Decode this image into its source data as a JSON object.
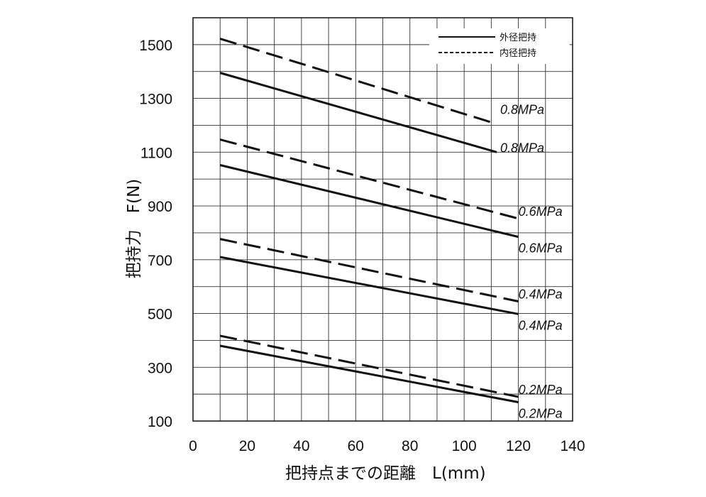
{
  "chart_data": {
    "type": "line",
    "xlabel": "把持点までの距離　L(mm)",
    "ylabel": "把持力　F(N)",
    "xlim": [
      0,
      140
    ],
    "ylim": [
      100,
      1600
    ],
    "x_ticks": [
      "0",
      "20",
      "40",
      "60",
      "80",
      "100",
      "120",
      "140"
    ],
    "y_ticks": [
      "100",
      "300",
      "500",
      "700",
      "900",
      "1100",
      "1300",
      "1500"
    ],
    "grid": true,
    "legend_position": "top-right",
    "legend": [
      {
        "label": "外径把持",
        "style": "solid"
      },
      {
        "label": "内径把持",
        "style": "dashed"
      }
    ],
    "series": [
      {
        "group": "外径把持",
        "style": "solid",
        "pressure_label": "0.8MPa",
        "x": [
          10,
          112
        ],
        "values": [
          1395,
          1100
        ]
      },
      {
        "group": "内径把持",
        "style": "dashed",
        "pressure_label": "0.8MPa",
        "x": [
          10,
          112
        ],
        "values": [
          1522,
          1205
        ]
      },
      {
        "group": "外径把持",
        "style": "solid",
        "pressure_label": "0.6MPa",
        "x": [
          10,
          120
        ],
        "values": [
          1052,
          785
        ]
      },
      {
        "group": "内径把持",
        "style": "dashed",
        "pressure_label": "0.6MPa",
        "x": [
          10,
          120
        ],
        "values": [
          1147,
          853
        ]
      },
      {
        "group": "外径把持",
        "style": "solid",
        "pressure_label": "0.4MPa",
        "x": [
          10,
          120
        ],
        "values": [
          710,
          498
        ]
      },
      {
        "group": "内径把持",
        "style": "dashed",
        "pressure_label": "0.4MPa",
        "x": [
          10,
          120
        ],
        "values": [
          777,
          545
        ]
      },
      {
        "group": "外径把持",
        "style": "solid",
        "pressure_label": "0.2MPa",
        "x": [
          10,
          120
        ],
        "values": [
          380,
          170
        ]
      },
      {
        "group": "内径把持",
        "style": "dashed",
        "pressure_label": "0.2MPa",
        "x": [
          10,
          120
        ],
        "values": [
          417,
          190
        ]
      }
    ]
  }
}
